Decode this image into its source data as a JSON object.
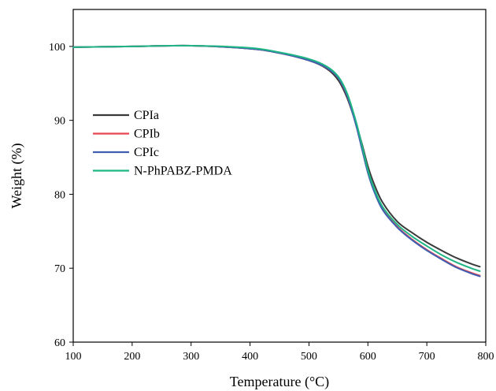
{
  "chart_data": {
    "type": "line",
    "title": "",
    "xlabel": "Temperature (°C)",
    "ylabel": "Weight (%)",
    "xlim": [
      100,
      800
    ],
    "ylim": [
      60,
      105
    ],
    "xticks": [
      100,
      200,
      300,
      400,
      500,
      600,
      700,
      800
    ],
    "yticks": [
      60,
      70,
      80,
      90,
      100
    ],
    "grid": false,
    "legend_position": "left",
    "series": [
      {
        "name": "CPIa",
        "color": "#3a3a3a",
        "x": [
          100,
          200,
          300,
          400,
          450,
          500,
          530,
          550,
          565,
          580,
          590,
          600,
          610,
          625,
          650,
          675,
          700,
          725,
          750,
          775,
          790
        ],
        "y": [
          99.9,
          100.0,
          100.1,
          99.7,
          99.1,
          98.1,
          97.0,
          95.4,
          93.0,
          89.5,
          86.8,
          83.8,
          81.5,
          78.9,
          76.3,
          74.8,
          73.5,
          72.4,
          71.4,
          70.6,
          70.2
        ]
      },
      {
        "name": "CPIb",
        "color": "#e8454e",
        "x": [
          100,
          200,
          300,
          400,
          450,
          500,
          530,
          550,
          565,
          580,
          590,
          600,
          610,
          625,
          650,
          675,
          700,
          725,
          750,
          775,
          790
        ],
        "y": [
          99.9,
          100.0,
          100.1,
          99.7,
          99.1,
          98.1,
          97.1,
          95.7,
          93.3,
          89.4,
          86.2,
          83.0,
          80.6,
          78.0,
          75.6,
          73.9,
          72.5,
          71.3,
          70.2,
          69.4,
          69.0
        ]
      },
      {
        "name": "CPIc",
        "color": "#3f5fb0",
        "x": [
          100,
          200,
          300,
          400,
          450,
          500,
          530,
          550,
          565,
          580,
          590,
          600,
          610,
          625,
          650,
          675,
          700,
          725,
          750,
          775,
          790
        ],
        "y": [
          99.9,
          100.0,
          100.1,
          99.7,
          99.1,
          98.1,
          97.1,
          95.7,
          93.3,
          89.3,
          86.1,
          82.9,
          80.5,
          77.9,
          75.5,
          73.8,
          72.4,
          71.2,
          70.1,
          69.3,
          68.9
        ]
      },
      {
        "name": "N-PhPABZ-PMDA",
        "color": "#1fb585",
        "x": [
          100,
          200,
          300,
          400,
          450,
          500,
          530,
          550,
          565,
          580,
          590,
          600,
          610,
          625,
          650,
          675,
          700,
          725,
          750,
          775,
          790
        ],
        "y": [
          99.9,
          100.0,
          100.1,
          99.8,
          99.2,
          98.3,
          97.3,
          95.9,
          93.6,
          89.8,
          86.6,
          83.3,
          80.9,
          78.3,
          75.9,
          74.3,
          73.0,
          71.8,
          70.8,
          70.0,
          69.6
        ]
      }
    ]
  }
}
